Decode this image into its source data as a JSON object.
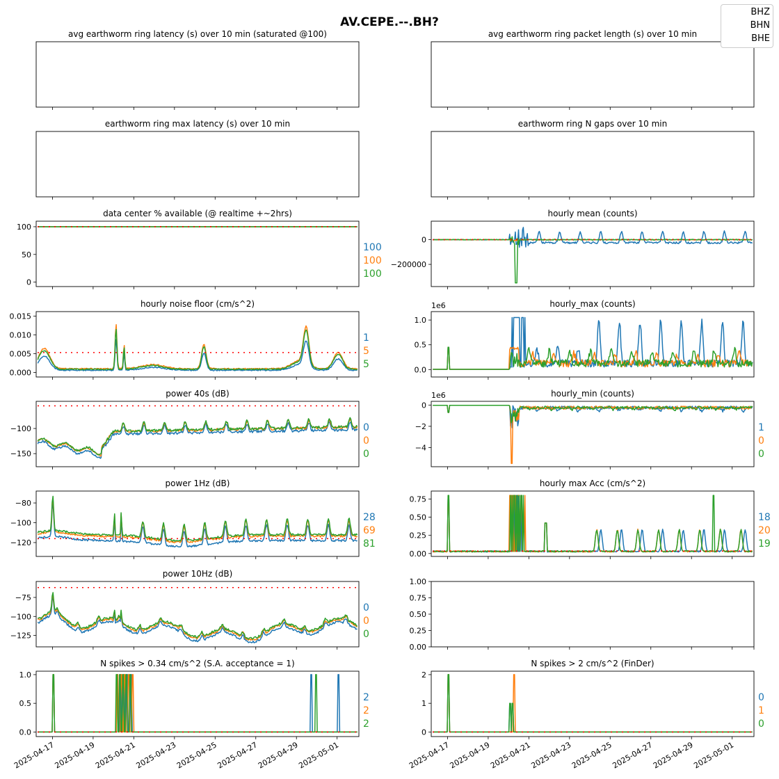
{
  "figure": {
    "title": "AV.CEPE.--.BH?",
    "legend": [
      "BHZ",
      "BHN",
      "BHE"
    ],
    "x_tick_labels": [
      "2025-04-17",
      "2025-04-19",
      "2025-04-21",
      "2025-04-23",
      "2025-04-25",
      "2025-04-27",
      "2025-04-29",
      "2025-05-01"
    ]
  },
  "colors": {
    "BHZ": "#1f77b4",
    "BHN": "#ff7f0e",
    "BHE": "#2ca02c",
    "threshold": "#ff0000"
  },
  "chart_data": [
    {
      "id": "lat_avg",
      "type": "line",
      "title": "avg earthworm ring latency (s)   over 10 min (saturated @100)",
      "empty": true
    },
    {
      "id": "pkt_len",
      "type": "line",
      "title": "avg earthworm ring packet length (s)   over 10 min",
      "empty": true
    },
    {
      "id": "lat_max",
      "type": "line",
      "title": "earthworm ring max latency (s)   over 10 min",
      "empty": true
    },
    {
      "id": "ngaps",
      "type": "line",
      "title": "earthworm ring N gaps   over 10 min",
      "empty": true
    },
    {
      "id": "avail",
      "type": "line",
      "title": "data center % available (@ realtime +~2hrs)",
      "ylim": [
        -8,
        110
      ],
      "yticks": [
        0,
        50,
        100
      ],
      "ytick_labels": [
        "0",
        "50",
        "100"
      ],
      "threshold": 100,
      "side_values": [
        "100",
        "100",
        "100"
      ],
      "series": [
        {
          "name": "BHZ",
          "gen": {
            "kind": "const",
            "value": 100
          }
        },
        {
          "name": "BHN",
          "gen": {
            "kind": "const",
            "value": 100
          }
        },
        {
          "name": "BHE",
          "gen": {
            "kind": "const",
            "value": 100
          }
        }
      ]
    },
    {
      "id": "hmean",
      "type": "line",
      "title": "hourly mean (counts)",
      "ylim": [
        -380000,
        150000
      ],
      "yticks": [
        0,
        -200000
      ],
      "ytick_labels": [
        "0",
        "−200000"
      ],
      "threshold": 0,
      "series": [
        {
          "name": "BHZ",
          "gen": {
            "kind": "hmean",
            "variant": "z"
          }
        },
        {
          "name": "BHN",
          "gen": {
            "kind": "hmean",
            "variant": "n"
          }
        },
        {
          "name": "BHE",
          "gen": {
            "kind": "hmean",
            "variant": "e"
          }
        }
      ]
    },
    {
      "id": "noise",
      "type": "line",
      "title": "hourly noise floor (cm/s^2)",
      "ylim": [
        -0.0012,
        0.0162
      ],
      "yticks": [
        0,
        0.005,
        0.01,
        0.015
      ],
      "ytick_labels": [
        "0.000",
        "0.005",
        "0.010",
        "0.015"
      ],
      "threshold": 0.0053,
      "side_values": [
        "1",
        "5",
        "5"
      ],
      "series": [
        {
          "name": "BHZ",
          "gen": {
            "kind": "noise",
            "scale": 0.75,
            "offset": 0.0
          }
        },
        {
          "name": "BHN",
          "gen": {
            "kind": "noise",
            "scale": 1.08,
            "offset": 0.0002
          }
        },
        {
          "name": "BHE",
          "gen": {
            "kind": "noise",
            "scale": 1.0,
            "offset": 0.0001
          }
        }
      ]
    },
    {
      "id": "hmax",
      "type": "line",
      "title": "hourly_max (counts)",
      "exponent": "1e6",
      "ylim": [
        -0.15,
        1.17
      ],
      "yticks": [
        0,
        0.5,
        1.0
      ],
      "ytick_labels": [
        "0.0",
        "0.5",
        "1.0"
      ],
      "series": [
        {
          "name": "BHZ",
          "gen": {
            "kind": "hmax",
            "variant": "z"
          }
        },
        {
          "name": "BHN",
          "gen": {
            "kind": "hmax",
            "variant": "n"
          }
        },
        {
          "name": "BHE",
          "gen": {
            "kind": "hmax",
            "variant": "e"
          }
        }
      ]
    },
    {
      "id": "p40",
      "type": "line",
      "title": "power 40s (dB)",
      "ylim": [
        -176,
        -46
      ],
      "yticks": [
        -100,
        -150
      ],
      "ytick_labels": [
        "−100",
        "−150"
      ],
      "threshold": -55,
      "side_values": [
        "0",
        "0",
        "0"
      ],
      "series": [
        {
          "name": "BHZ",
          "gen": {
            "kind": "p40",
            "offset": -6
          }
        },
        {
          "name": "BHN",
          "gen": {
            "kind": "p40",
            "offset": -1
          }
        },
        {
          "name": "BHE",
          "gen": {
            "kind": "p40",
            "offset": 0
          }
        }
      ]
    },
    {
      "id": "hmin",
      "type": "line",
      "title": "hourly_min (counts)",
      "exponent": "1e6",
      "ylim": [
        -5.8,
        0.35
      ],
      "yticks": [
        0,
        -2,
        -4
      ],
      "ytick_labels": [
        "0",
        "−2",
        "−4"
      ],
      "side_values": [
        "1",
        "0",
        "0"
      ],
      "series": [
        {
          "name": "BHZ",
          "gen": {
            "kind": "hmin",
            "variant": "z"
          }
        },
        {
          "name": "BHN",
          "gen": {
            "kind": "hmin",
            "variant": "n"
          }
        },
        {
          "name": "BHE",
          "gen": {
            "kind": "hmin",
            "variant": "e"
          }
        }
      ]
    },
    {
      "id": "p1",
      "type": "line",
      "title": "power 1Hz (dB)",
      "ylim": [
        -134,
        -68
      ],
      "yticks": [
        -80,
        -100,
        -120
      ],
      "ytick_labels": [
        "−80",
        "−100",
        "−120"
      ],
      "threshold": -116,
      "side_values": [
        "28",
        "69",
        "81"
      ],
      "series": [
        {
          "name": "BHZ",
          "gen": {
            "kind": "p1",
            "offset": -6
          }
        },
        {
          "name": "BHN",
          "gen": {
            "kind": "p1",
            "offset": -1.5
          }
        },
        {
          "name": "BHE",
          "gen": {
            "kind": "p1",
            "offset": 0
          }
        }
      ]
    },
    {
      "id": "acc",
      "type": "line",
      "title": "hourly max Acc (cm/s^2)",
      "ylim": [
        -0.04,
        0.86
      ],
      "yticks": [
        0,
        0.25,
        0.5,
        0.75
      ],
      "ytick_labels": [
        "0.00",
        "0.25",
        "0.50",
        "0.75"
      ],
      "threshold": 0.034,
      "side_values": [
        "18",
        "20",
        "19"
      ],
      "series": [
        {
          "name": "BHZ",
          "gen": {
            "kind": "acc",
            "variant": "z"
          }
        },
        {
          "name": "BHN",
          "gen": {
            "kind": "acc",
            "variant": "n"
          }
        },
        {
          "name": "BHE",
          "gen": {
            "kind": "acc",
            "variant": "e"
          }
        }
      ]
    },
    {
      "id": "p10",
      "type": "line",
      "title": "power 10Hz (dB)",
      "ylim": [
        -140,
        -54
      ],
      "yticks": [
        -75,
        -100,
        -125
      ],
      "ytick_labels": [
        "−75",
        "−100",
        "−125"
      ],
      "threshold": -62,
      "side_values": [
        "0",
        "0",
        "0"
      ],
      "series": [
        {
          "name": "BHZ",
          "gen": {
            "kind": "p10",
            "offset": -5
          }
        },
        {
          "name": "BHN",
          "gen": {
            "kind": "p10",
            "offset": -1.5
          }
        },
        {
          "name": "BHE",
          "gen": {
            "kind": "p10",
            "offset": 0
          }
        }
      ]
    },
    {
      "id": "blank",
      "type": "line",
      "title": "",
      "ylim": [
        0,
        1
      ],
      "yticks": [
        0,
        0.25,
        0.5,
        0.75,
        1.0
      ],
      "ytick_labels": [
        "0.00",
        "0.25",
        "0.50",
        "0.75",
        "1.00"
      ],
      "empty": true
    },
    {
      "id": "spk1",
      "type": "line",
      "title": "N spikes > 0.34 cm/s^2 (S.A. acceptance = 1)",
      "ylim": [
        -0.08,
        1.06
      ],
      "yticks": [
        0,
        0.5,
        1.0
      ],
      "ytick_labels": [
        "0.0",
        "0.5",
        "1.0"
      ],
      "threshold": 0,
      "side_values": [
        "2",
        "2",
        "2"
      ],
      "series": [
        {
          "name": "BHZ",
          "gen": {
            "kind": "spikes",
            "spikes": [
              [
                0.05,
                1
              ],
              [
                0.25,
                1
              ],
              [
                0.26,
                1
              ],
              [
                0.27,
                1
              ],
              [
                0.28,
                1
              ],
              [
                0.292,
                1
              ],
              [
                0.857,
                1
              ],
              [
                0.941,
                1
              ]
            ]
          }
        },
        {
          "name": "BHN",
          "gen": {
            "kind": "spikes",
            "spikes": [
              [
                0.05,
                1
              ],
              [
                0.25,
                1
              ],
              [
                0.262,
                1
              ],
              [
                0.272,
                1
              ],
              [
                0.284,
                1
              ],
              [
                0.296,
                1
              ]
            ]
          }
        },
        {
          "name": "BHE",
          "gen": {
            "kind": "spikes",
            "spikes": [
              [
                0.049,
                1
              ],
              [
                0.247,
                1
              ],
              [
                0.257,
                1
              ],
              [
                0.268,
                1
              ],
              [
                0.278,
                1
              ],
              [
                0.29,
                1
              ],
              [
                0.872,
                1
              ]
            ]
          }
        }
      ]
    },
    {
      "id": "spk2",
      "type": "line",
      "title": "N spikes > 2 cm/s^2 (FinDer)",
      "ylim": [
        -0.16,
        2.12
      ],
      "yticks": [
        0,
        1,
        2
      ],
      "ytick_labels": [
        "0",
        "1",
        "2"
      ],
      "threshold": 0,
      "side_values": [
        "0",
        "1",
        "0"
      ],
      "series": [
        {
          "name": "BHZ",
          "gen": {
            "kind": "spikes",
            "spikes": [
              [
                0.05,
                2
              ],
              [
                0.243,
                1
              ],
              [
                0.249,
                1
              ]
            ]
          }
        },
        {
          "name": "BHN",
          "gen": {
            "kind": "spikes",
            "spikes": [
              [
                0.05,
                2
              ],
              [
                0.255,
                2
              ]
            ]
          }
        },
        {
          "name": "BHE",
          "gen": {
            "kind": "spikes",
            "spikes": [
              [
                0.05,
                2
              ],
              [
                0.243,
                1
              ],
              [
                0.249,
                1
              ]
            ]
          }
        }
      ]
    }
  ]
}
